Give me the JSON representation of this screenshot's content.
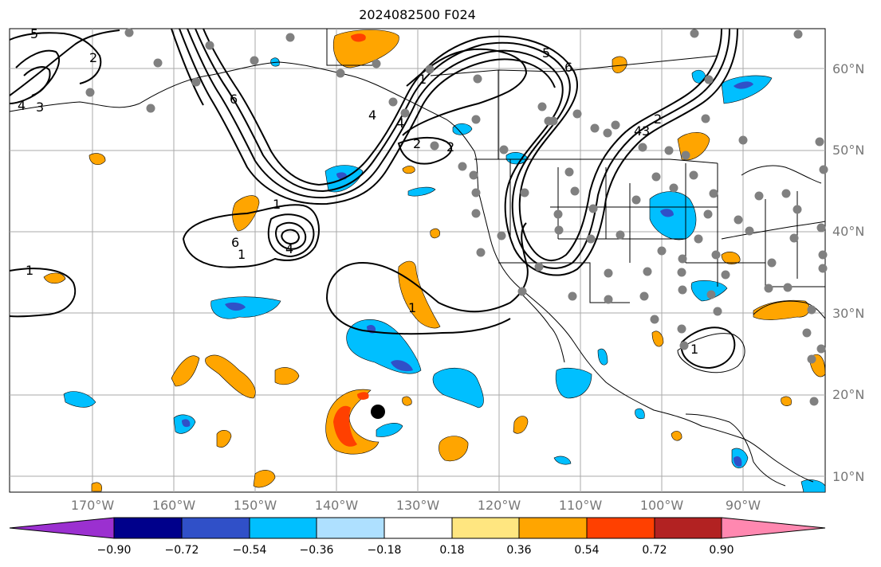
{
  "title": "2024082500 F024",
  "lat_labels": [
    "60°N",
    "50°N",
    "40°N",
    "30°N",
    "20°N",
    "10°N"
  ],
  "lon_labels": [
    "170°W",
    "160°W",
    "150°W",
    "140°W",
    "130°W",
    "120°W",
    "110°W",
    "100°W",
    "90°W"
  ],
  "colorbar": {
    "tick_labels": [
      "−0.90",
      "−0.72",
      "−0.54",
      "−0.36",
      "−0.18",
      "0.18",
      "0.36",
      "0.54",
      "0.72",
      "0.90"
    ],
    "colors": [
      "#9b30d0",
      "#00008b",
      "#3050c8",
      "#00bfff",
      "#aee0ff",
      "#ffffff",
      "#ffe680",
      "#ffa500",
      "#ff4000",
      "#b22222",
      "#ff88b0"
    ]
  },
  "contour_labels": [
    "5",
    "2",
    "3",
    "4",
    "6",
    "2",
    "4",
    "6",
    "2",
    "1",
    "4",
    "1",
    "4",
    "3",
    "2",
    "1",
    "1",
    "1",
    "5",
    "4",
    "6",
    "1"
  ],
  "marker": "center-dot"
}
